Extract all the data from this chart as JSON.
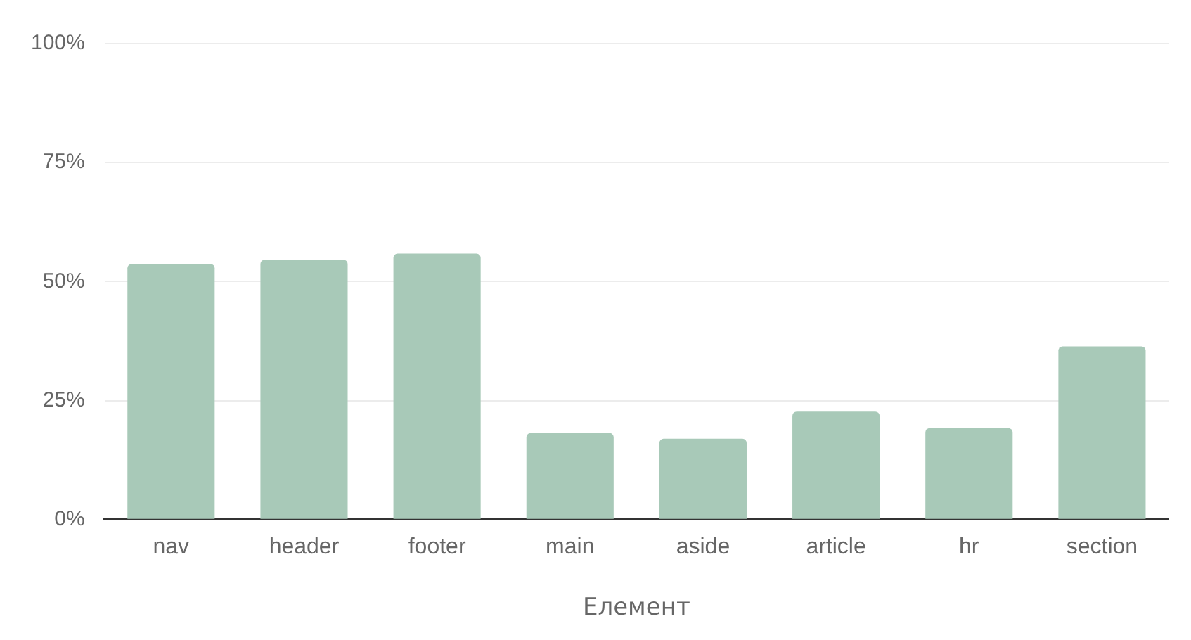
{
  "chart_data": {
    "type": "bar",
    "xlabel": "Елемент",
    "categories": [
      "nav",
      "header",
      "footer",
      "main",
      "aside",
      "article",
      "hr",
      "section"
    ],
    "values": [
      53.7,
      54.6,
      55.9,
      18.2,
      17,
      22.7,
      19.2,
      36.4
    ],
    "color": "#a8c9b8",
    "ylim": [
      0,
      100
    ],
    "yticks": [
      {
        "value": 0,
        "label": "0%"
      },
      {
        "value": 25,
        "label": "25%"
      },
      {
        "value": 50,
        "label": "50%"
      },
      {
        "value": 75,
        "label": "75%"
      },
      {
        "value": 100,
        "label": "100%"
      }
    ],
    "grid": "y",
    "legend": false
  }
}
